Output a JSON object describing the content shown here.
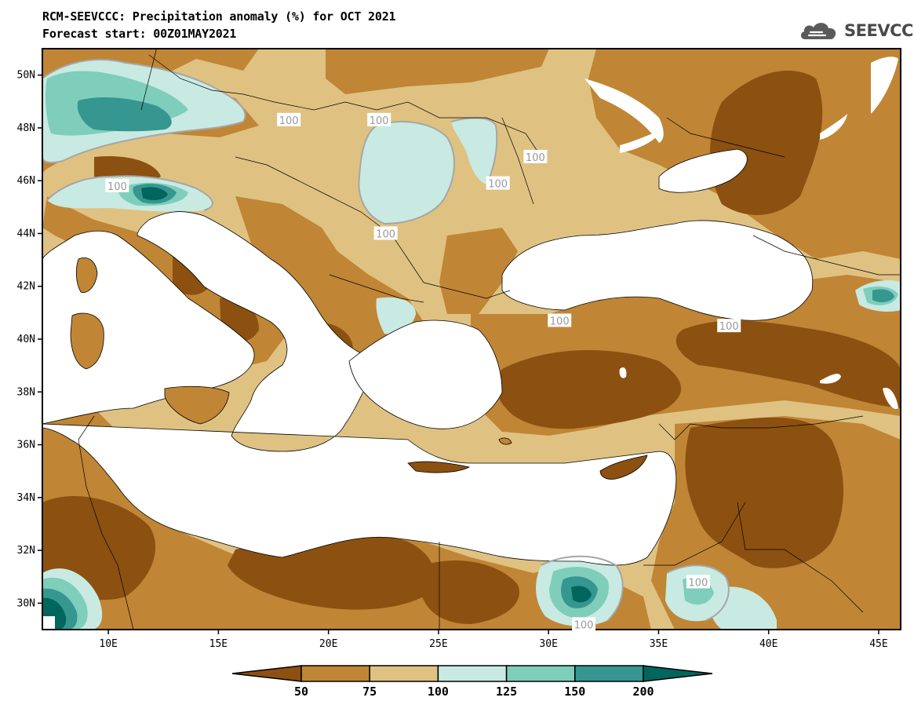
{
  "header": {
    "title_line1": "RCM-SEEVCCC: Precipitation anomaly (%) for OCT 2021",
    "title_line2": "Forecast start: 00Z01MAY2021"
  },
  "logo": {
    "icon": "cloud-icon",
    "text": "SEEVCCC"
  },
  "map": {
    "lon_range": [
      7,
      46
    ],
    "lat_range": [
      29,
      51
    ],
    "lat_ticks": [
      {
        "value": 50,
        "label": "50N"
      },
      {
        "value": 48,
        "label": "48N"
      },
      {
        "value": 46,
        "label": "46N"
      },
      {
        "value": 44,
        "label": "44N"
      },
      {
        "value": 42,
        "label": "42N"
      },
      {
        "value": 40,
        "label": "40N"
      },
      {
        "value": 38,
        "label": "38N"
      },
      {
        "value": 36,
        "label": "36N"
      },
      {
        "value": 34,
        "label": "34N"
      },
      {
        "value": 32,
        "label": "32N"
      },
      {
        "value": 30,
        "label": "30N"
      }
    ],
    "lon_ticks": [
      {
        "value": 10,
        "label": "10E"
      },
      {
        "value": 15,
        "label": "15E"
      },
      {
        "value": 20,
        "label": "20E"
      },
      {
        "value": 25,
        "label": "25E"
      },
      {
        "value": 30,
        "label": "30E"
      },
      {
        "value": 35,
        "label": "35E"
      },
      {
        "value": 40,
        "label": "40E"
      },
      {
        "value": 45,
        "label": "45E"
      }
    ],
    "contour_labels": [
      {
        "text": "100",
        "lon": 18.2,
        "lat": 48.3
      },
      {
        "text": "100",
        "lon": 22.3,
        "lat": 48.3
      },
      {
        "text": "100",
        "lon": 29.4,
        "lat": 46.9
      },
      {
        "text": "100",
        "lon": 27.7,
        "lat": 45.9
      },
      {
        "text": "100",
        "lon": 10.4,
        "lat": 45.8
      },
      {
        "text": "100",
        "lon": 22.6,
        "lat": 44.0
      },
      {
        "text": "100",
        "lon": 30.5,
        "lat": 40.7
      },
      {
        "text": "100",
        "lon": 38.2,
        "lat": 40.5
      },
      {
        "text": "100",
        "lon": 36.8,
        "lat": 30.8
      },
      {
        "text": "100",
        "lon": 31.6,
        "lat": 29.2
      }
    ]
  },
  "colorbar": {
    "colors": [
      "#8c5010",
      "#c08535",
      "#dfc282",
      "#c8eae2",
      "#7fcdbb",
      "#35978f",
      "#01665e"
    ],
    "labels": [
      "50",
      "75",
      "100",
      "125",
      "150",
      "200"
    ]
  }
}
